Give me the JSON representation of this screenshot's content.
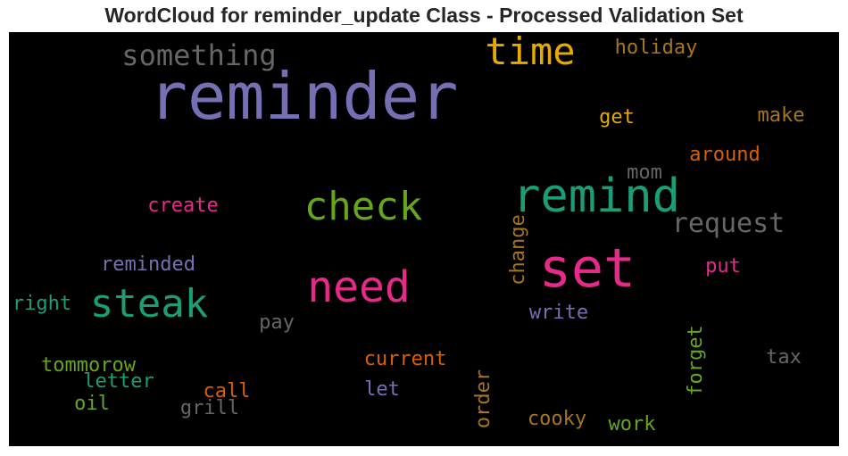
{
  "chart_data": {
    "type": "wordcloud",
    "title": "WordCloud for reminder_update Class - Processed Validation Set",
    "background": "#000000",
    "words": [
      {
        "text": "reminder",
        "color": "#7570b3",
        "weight": 1.0
      },
      {
        "text": "set",
        "color": "#e7298a",
        "weight": 0.85
      },
      {
        "text": "remind",
        "color": "#1b9e77",
        "weight": 0.75
      },
      {
        "text": "need",
        "color": "#e7298a",
        "weight": 0.7
      },
      {
        "text": "steak",
        "color": "#1b9e77",
        "weight": 0.65
      },
      {
        "text": "check",
        "color": "#66a61e",
        "weight": 0.65
      },
      {
        "text": "time",
        "color": "#e6ab02",
        "weight": 0.62
      },
      {
        "text": "something",
        "color": "#666666",
        "weight": 0.55
      },
      {
        "text": "request",
        "color": "#666666",
        "weight": 0.52
      },
      {
        "text": "create",
        "color": "#e7298a",
        "weight": 0.4
      },
      {
        "text": "reminded",
        "color": "#7570b3",
        "weight": 0.4
      },
      {
        "text": "around",
        "color": "#d95f02",
        "weight": 0.4
      },
      {
        "text": "change",
        "color": "#a6761d",
        "weight": 0.4
      },
      {
        "text": "current",
        "color": "#d95f02",
        "weight": 0.4
      },
      {
        "text": "holiday",
        "color": "#a6761d",
        "weight": 0.38
      },
      {
        "text": "get",
        "color": "#e6ab02",
        "weight": 0.38
      },
      {
        "text": "make",
        "color": "#a6761d",
        "weight": 0.38
      },
      {
        "text": "mom",
        "color": "#666666",
        "weight": 0.38
      },
      {
        "text": "put",
        "color": "#e7298a",
        "weight": 0.38
      },
      {
        "text": "write",
        "color": "#7570b3",
        "weight": 0.38
      },
      {
        "text": "pay",
        "color": "#666666",
        "weight": 0.38
      },
      {
        "text": "right",
        "color": "#1b9e77",
        "weight": 0.36
      },
      {
        "text": "tommorow",
        "color": "#66a61e",
        "weight": 0.36
      },
      {
        "text": "letter",
        "color": "#1b9e77",
        "weight": 0.36
      },
      {
        "text": "oil",
        "color": "#66a61e",
        "weight": 0.36
      },
      {
        "text": "call",
        "color": "#d95f02",
        "weight": 0.36
      },
      {
        "text": "grill",
        "color": "#666666",
        "weight": 0.36
      },
      {
        "text": "let",
        "color": "#7570b3",
        "weight": 0.36
      },
      {
        "text": "order",
        "color": "#a6761d",
        "weight": 0.38
      },
      {
        "text": "cooky",
        "color": "#a6761d",
        "weight": 0.38
      },
      {
        "text": "work",
        "color": "#66a61e",
        "weight": 0.38
      },
      {
        "text": "forget",
        "color": "#66a61e",
        "weight": 0.4
      },
      {
        "text": "tax",
        "color": "#666666",
        "weight": 0.36
      }
    ]
  }
}
